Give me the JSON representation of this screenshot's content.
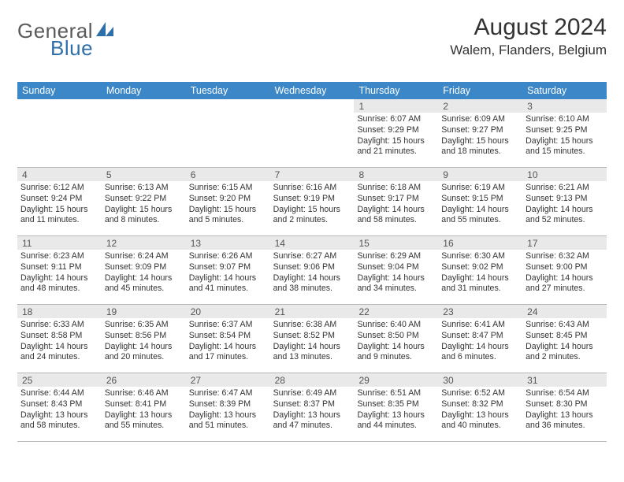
{
  "logo": {
    "gray": "General",
    "blue": "Blue"
  },
  "title": "August 2024",
  "location": "Walem, Flanders, Belgium",
  "day_headers": [
    "Sunday",
    "Monday",
    "Tuesday",
    "Wednesday",
    "Thursday",
    "Friday",
    "Saturday"
  ],
  "header_bg": "#3b87c8",
  "daynum_bg": "#e9e9e9",
  "weeks": [
    [
      {
        "n": "",
        "sr": "",
        "ss": "",
        "dl1": "",
        "dl2": ""
      },
      {
        "n": "",
        "sr": "",
        "ss": "",
        "dl1": "",
        "dl2": ""
      },
      {
        "n": "",
        "sr": "",
        "ss": "",
        "dl1": "",
        "dl2": ""
      },
      {
        "n": "",
        "sr": "",
        "ss": "",
        "dl1": "",
        "dl2": ""
      },
      {
        "n": "1",
        "sr": "Sunrise: 6:07 AM",
        "ss": "Sunset: 9:29 PM",
        "dl1": "Daylight: 15 hours",
        "dl2": "and 21 minutes."
      },
      {
        "n": "2",
        "sr": "Sunrise: 6:09 AM",
        "ss": "Sunset: 9:27 PM",
        "dl1": "Daylight: 15 hours",
        "dl2": "and 18 minutes."
      },
      {
        "n": "3",
        "sr": "Sunrise: 6:10 AM",
        "ss": "Sunset: 9:25 PM",
        "dl1": "Daylight: 15 hours",
        "dl2": "and 15 minutes."
      }
    ],
    [
      {
        "n": "4",
        "sr": "Sunrise: 6:12 AM",
        "ss": "Sunset: 9:24 PM",
        "dl1": "Daylight: 15 hours",
        "dl2": "and 11 minutes."
      },
      {
        "n": "5",
        "sr": "Sunrise: 6:13 AM",
        "ss": "Sunset: 9:22 PM",
        "dl1": "Daylight: 15 hours",
        "dl2": "and 8 minutes."
      },
      {
        "n": "6",
        "sr": "Sunrise: 6:15 AM",
        "ss": "Sunset: 9:20 PM",
        "dl1": "Daylight: 15 hours",
        "dl2": "and 5 minutes."
      },
      {
        "n": "7",
        "sr": "Sunrise: 6:16 AM",
        "ss": "Sunset: 9:19 PM",
        "dl1": "Daylight: 15 hours",
        "dl2": "and 2 minutes."
      },
      {
        "n": "8",
        "sr": "Sunrise: 6:18 AM",
        "ss": "Sunset: 9:17 PM",
        "dl1": "Daylight: 14 hours",
        "dl2": "and 58 minutes."
      },
      {
        "n": "9",
        "sr": "Sunrise: 6:19 AM",
        "ss": "Sunset: 9:15 PM",
        "dl1": "Daylight: 14 hours",
        "dl2": "and 55 minutes."
      },
      {
        "n": "10",
        "sr": "Sunrise: 6:21 AM",
        "ss": "Sunset: 9:13 PM",
        "dl1": "Daylight: 14 hours",
        "dl2": "and 52 minutes."
      }
    ],
    [
      {
        "n": "11",
        "sr": "Sunrise: 6:23 AM",
        "ss": "Sunset: 9:11 PM",
        "dl1": "Daylight: 14 hours",
        "dl2": "and 48 minutes."
      },
      {
        "n": "12",
        "sr": "Sunrise: 6:24 AM",
        "ss": "Sunset: 9:09 PM",
        "dl1": "Daylight: 14 hours",
        "dl2": "and 45 minutes."
      },
      {
        "n": "13",
        "sr": "Sunrise: 6:26 AM",
        "ss": "Sunset: 9:07 PM",
        "dl1": "Daylight: 14 hours",
        "dl2": "and 41 minutes."
      },
      {
        "n": "14",
        "sr": "Sunrise: 6:27 AM",
        "ss": "Sunset: 9:06 PM",
        "dl1": "Daylight: 14 hours",
        "dl2": "and 38 minutes."
      },
      {
        "n": "15",
        "sr": "Sunrise: 6:29 AM",
        "ss": "Sunset: 9:04 PM",
        "dl1": "Daylight: 14 hours",
        "dl2": "and 34 minutes."
      },
      {
        "n": "16",
        "sr": "Sunrise: 6:30 AM",
        "ss": "Sunset: 9:02 PM",
        "dl1": "Daylight: 14 hours",
        "dl2": "and 31 minutes."
      },
      {
        "n": "17",
        "sr": "Sunrise: 6:32 AM",
        "ss": "Sunset: 9:00 PM",
        "dl1": "Daylight: 14 hours",
        "dl2": "and 27 minutes."
      }
    ],
    [
      {
        "n": "18",
        "sr": "Sunrise: 6:33 AM",
        "ss": "Sunset: 8:58 PM",
        "dl1": "Daylight: 14 hours",
        "dl2": "and 24 minutes."
      },
      {
        "n": "19",
        "sr": "Sunrise: 6:35 AM",
        "ss": "Sunset: 8:56 PM",
        "dl1": "Daylight: 14 hours",
        "dl2": "and 20 minutes."
      },
      {
        "n": "20",
        "sr": "Sunrise: 6:37 AM",
        "ss": "Sunset: 8:54 PM",
        "dl1": "Daylight: 14 hours",
        "dl2": "and 17 minutes."
      },
      {
        "n": "21",
        "sr": "Sunrise: 6:38 AM",
        "ss": "Sunset: 8:52 PM",
        "dl1": "Daylight: 14 hours",
        "dl2": "and 13 minutes."
      },
      {
        "n": "22",
        "sr": "Sunrise: 6:40 AM",
        "ss": "Sunset: 8:50 PM",
        "dl1": "Daylight: 14 hours",
        "dl2": "and 9 minutes."
      },
      {
        "n": "23",
        "sr": "Sunrise: 6:41 AM",
        "ss": "Sunset: 8:47 PM",
        "dl1": "Daylight: 14 hours",
        "dl2": "and 6 minutes."
      },
      {
        "n": "24",
        "sr": "Sunrise: 6:43 AM",
        "ss": "Sunset: 8:45 PM",
        "dl1": "Daylight: 14 hours",
        "dl2": "and 2 minutes."
      }
    ],
    [
      {
        "n": "25",
        "sr": "Sunrise: 6:44 AM",
        "ss": "Sunset: 8:43 PM",
        "dl1": "Daylight: 13 hours",
        "dl2": "and 58 minutes."
      },
      {
        "n": "26",
        "sr": "Sunrise: 6:46 AM",
        "ss": "Sunset: 8:41 PM",
        "dl1": "Daylight: 13 hours",
        "dl2": "and 55 minutes."
      },
      {
        "n": "27",
        "sr": "Sunrise: 6:47 AM",
        "ss": "Sunset: 8:39 PM",
        "dl1": "Daylight: 13 hours",
        "dl2": "and 51 minutes."
      },
      {
        "n": "28",
        "sr": "Sunrise: 6:49 AM",
        "ss": "Sunset: 8:37 PM",
        "dl1": "Daylight: 13 hours",
        "dl2": "and 47 minutes."
      },
      {
        "n": "29",
        "sr": "Sunrise: 6:51 AM",
        "ss": "Sunset: 8:35 PM",
        "dl1": "Daylight: 13 hours",
        "dl2": "and 44 minutes."
      },
      {
        "n": "30",
        "sr": "Sunrise: 6:52 AM",
        "ss": "Sunset: 8:32 PM",
        "dl1": "Daylight: 13 hours",
        "dl2": "and 40 minutes."
      },
      {
        "n": "31",
        "sr": "Sunrise: 6:54 AM",
        "ss": "Sunset: 8:30 PM",
        "dl1": "Daylight: 13 hours",
        "dl2": "and 36 minutes."
      }
    ]
  ]
}
